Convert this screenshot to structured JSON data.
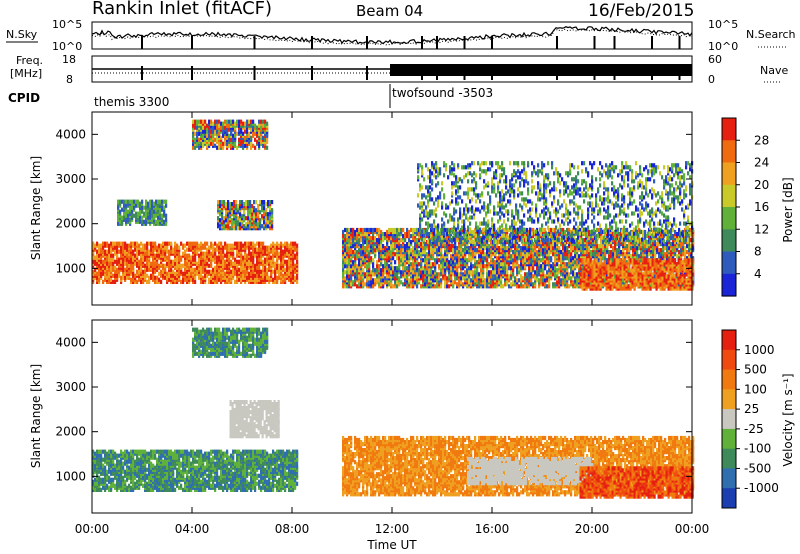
{
  "header": {
    "station": "Rankin Inlet (fitACF)",
    "beam": "Beam 04",
    "date": "16/Feb/2015"
  },
  "noise_panel": {
    "left_label": "N.Sky",
    "left_ticks": [
      "10^5",
      "10^0"
    ],
    "right_ticks": [
      "10^5",
      "10^0"
    ],
    "right_label": "N.Search"
  },
  "freq_panel": {
    "left_label_line1": "Freq.",
    "left_label_line2": "[MHz]",
    "left_ticks": [
      "18",
      "8"
    ],
    "right_ticks": [
      "60",
      "0"
    ],
    "right_label": "Nave"
  },
  "cpid": {
    "label": "CPID",
    "modes": [
      {
        "name": "themis 3300",
        "start_hour": 0
      },
      {
        "name": "twofsound -3503",
        "start_hour": 12.0
      }
    ]
  },
  "x_axis": {
    "label": "Time UT",
    "ticks": [
      "00:00",
      "04:00",
      "08:00",
      "12:00",
      "16:00",
      "20:00",
      "00:00"
    ],
    "tick_hours": [
      0,
      4,
      8,
      12,
      16,
      20,
      24
    ]
  },
  "chart_data": [
    {
      "type": "heatmap",
      "panel": "power",
      "ylabel": "Slant Range [km]",
      "ylim": [
        180,
        4500
      ],
      "yticks": [
        1000,
        2000,
        3000,
        4000
      ],
      "colorbar": {
        "label": "Power [dB]",
        "ticks": [
          "4",
          "8",
          "12",
          "16",
          "20",
          "24",
          "28"
        ],
        "colors": [
          "#1b25d8",
          "#2f5cbc",
          "#3f8a5a",
          "#5fb13a",
          "#c9c92a",
          "#f0a020",
          "#f06a10",
          "#e52010"
        ]
      },
      "echo_regions": [
        {
          "x": [
            0.0,
            8.2
          ],
          "y": [
            700,
            1600
          ],
          "level": "high"
        },
        {
          "x": [
            5.0,
            7.2
          ],
          "y": [
            1900,
            2500
          ],
          "level": "mixed"
        },
        {
          "x": [
            1.0,
            3.0
          ],
          "y": [
            2000,
            2500
          ],
          "level": "low"
        },
        {
          "x": [
            4.0,
            7.0
          ],
          "y": [
            3700,
            4300
          ],
          "level": "mixed"
        },
        {
          "x": [
            10.0,
            24.0
          ],
          "y": [
            600,
            1900
          ],
          "level": "mixed"
        },
        {
          "x": [
            19.5,
            24.0
          ],
          "y": [
            550,
            1200
          ],
          "level": "high"
        },
        {
          "x": [
            13.0,
            24.0
          ],
          "y": [
            1600,
            3400
          ],
          "level": "sparse"
        }
      ]
    },
    {
      "type": "heatmap",
      "panel": "velocity",
      "ylabel": "Slant Range [km]",
      "ylim": [
        180,
        4500
      ],
      "yticks": [
        1000,
        2000,
        3000,
        4000
      ],
      "colorbar": {
        "label": "Velocity [m s⁻¹]",
        "ticks": [
          "1000",
          "500",
          "100",
          "25",
          "-25",
          "-100",
          "-500",
          "-1000"
        ],
        "colors": [
          "#1b3fb0",
          "#2f6fb0",
          "#3f8a5a",
          "#5fb13a",
          "#c8c8c0",
          "#f0a020",
          "#f07a10",
          "#f04a10",
          "#e52010"
        ]
      },
      "echo_regions": [
        {
          "x": [
            0.0,
            8.2
          ],
          "y": [
            700,
            1600
          ],
          "level": "toward"
        },
        {
          "x": [
            5.5,
            7.5
          ],
          "y": [
            1900,
            2700
          ],
          "level": "zero"
        },
        {
          "x": [
            4.0,
            7.0
          ],
          "y": [
            3700,
            4300
          ],
          "level": "toward"
        },
        {
          "x": [
            10.0,
            24.0
          ],
          "y": [
            600,
            1900
          ],
          "level": "away"
        },
        {
          "x": [
            15.0,
            20.0
          ],
          "y": [
            850,
            1400
          ],
          "level": "zero"
        },
        {
          "x": [
            19.5,
            24.0
          ],
          "y": [
            550,
            1200
          ],
          "level": "away-strong"
        }
      ]
    }
  ]
}
